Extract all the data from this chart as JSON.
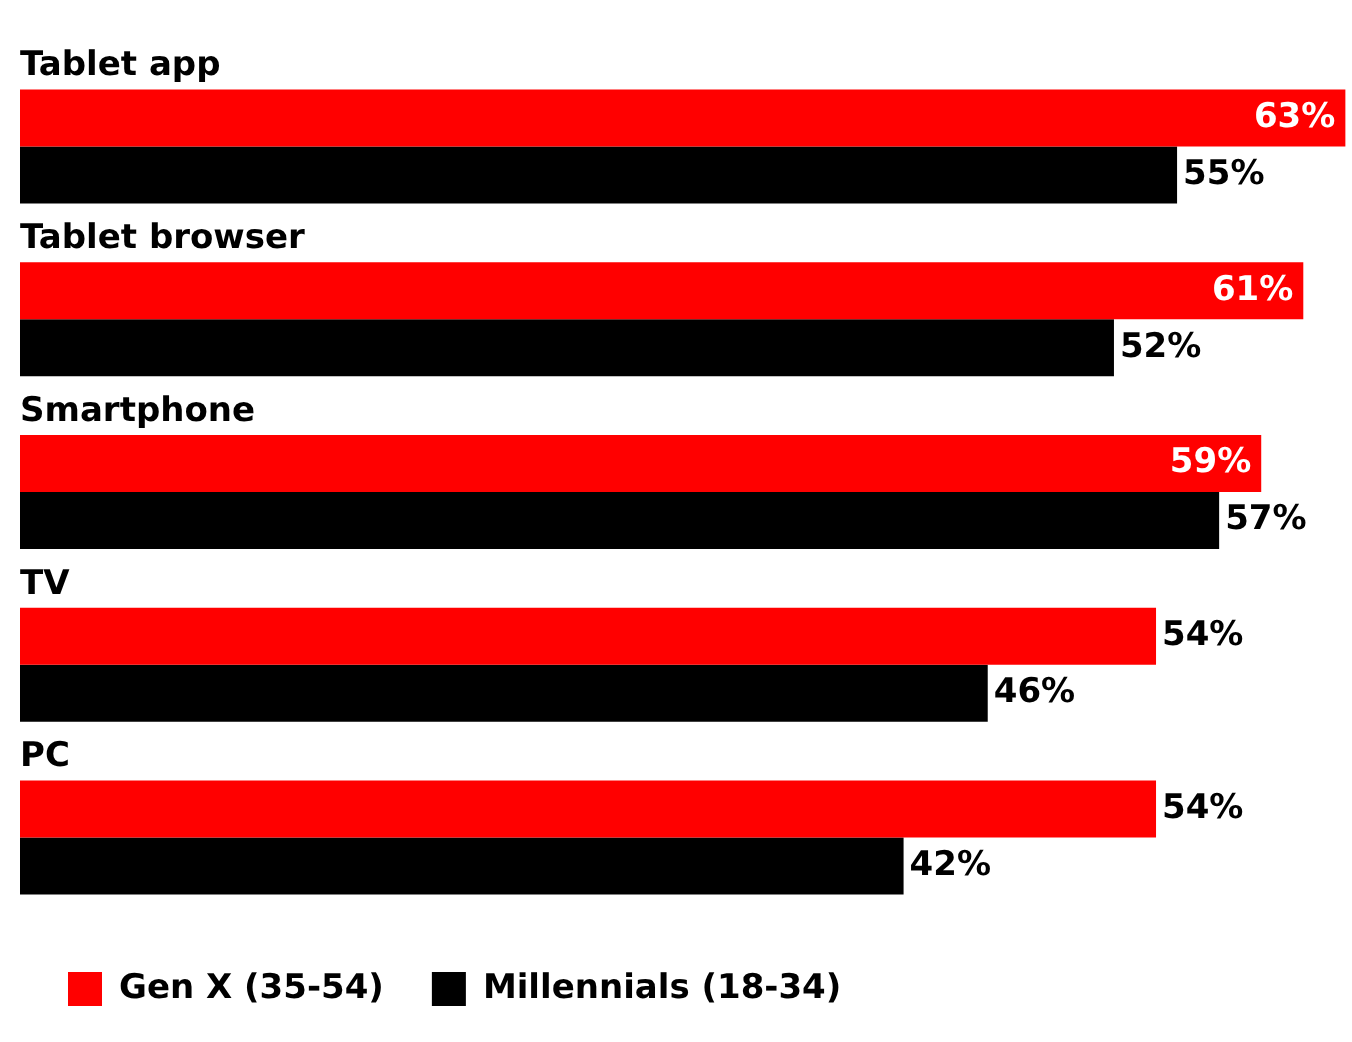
{
  "chart_data": {
    "type": "bar",
    "orientation": "horizontal",
    "categories": [
      "Tablet app",
      "Tablet browser",
      "Smartphone",
      "TV",
      "PC"
    ],
    "series": [
      {
        "name": "Gen X (35-54)",
        "color": "#ff0000",
        "values": [
          63,
          61,
          59,
          54,
          54
        ],
        "value_labels": [
          "63%",
          "61%",
          "59%",
          "54%",
          "54%"
        ]
      },
      {
        "name": "Millennials (18-34)",
        "color": "#000000",
        "values": [
          55,
          52,
          57,
          46,
          42
        ],
        "value_labels": [
          "55%",
          "52%",
          "57%",
          "46%",
          "42%"
        ]
      }
    ],
    "legend": "bottom"
  }
}
